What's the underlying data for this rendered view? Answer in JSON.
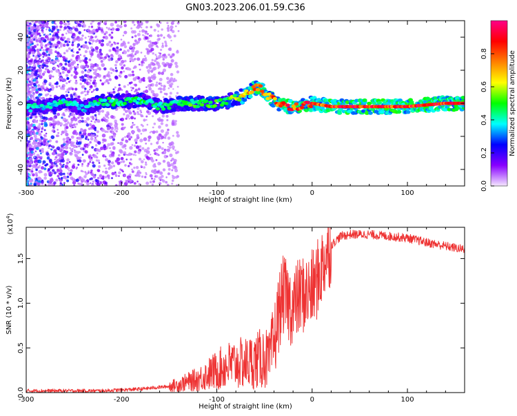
{
  "title": "GN03.2023.206.01.59.C36",
  "chart_data": [
    {
      "type": "heatmap",
      "xlabel": "Height of straight line (km)",
      "ylabel": "Frequency (Hz)",
      "xlim": [
        -300,
        160
      ],
      "ylim": [
        -50,
        50
      ],
      "x_ticks": [
        "-300",
        "-200",
        "-100",
        "0",
        "100"
      ],
      "x_tick_values": [
        -300,
        -200,
        -100,
        0,
        100
      ],
      "y_ticks": [
        "-40",
        "-20",
        "0",
        "20",
        "40"
      ],
      "y_tick_values": [
        -40,
        -20,
        0,
        20,
        40
      ],
      "colorbar": {
        "label": "Normalized spectral amplitude",
        "range": [
          0,
          1
        ],
        "ticks": [
          "0.0",
          "0.2",
          "0.4",
          "0.6",
          "0.8"
        ],
        "tick_values": [
          0,
          0.2,
          0.4,
          0.6,
          0.8
        ],
        "colors": [
          "#f5e8ff",
          "#8800ff",
          "#0000ff",
          "#00ffff",
          "#00ff00",
          "#ffff00",
          "#ff8000",
          "#ff0000",
          "#ff0088"
        ]
      },
      "ridge": {
        "x": [
          -300,
          -280,
          -260,
          -240,
          -220,
          -200,
          -180,
          -160,
          -140,
          -120,
          -100,
          -90,
          -80,
          -70,
          -60,
          -55,
          -50,
          -45,
          -40,
          -35,
          -30,
          -25,
          -20,
          -15,
          -10,
          -5,
          0,
          10,
          20,
          40,
          60,
          80,
          100,
          120,
          140,
          160
        ],
        "freq": [
          -3,
          -2,
          1,
          -3,
          1,
          1,
          2,
          -2,
          0,
          0,
          0,
          1,
          3,
          5,
          9,
          10,
          6,
          4,
          2,
          0,
          -1,
          -2,
          -3,
          -2,
          -1,
          -1,
          0,
          -1,
          -2,
          -2,
          -2,
          -2,
          -2,
          -1,
          0,
          0
        ],
        "amplitude": [
          0.45,
          0.4,
          0.45,
          0.4,
          0.5,
          0.5,
          0.5,
          0.45,
          0.5,
          0.55,
          0.55,
          0.55,
          0.6,
          0.7,
          0.9,
          0.9,
          0.9,
          0.85,
          0.85,
          0.85,
          0.9,
          0.9,
          0.9,
          0.9,
          0.9,
          0.9,
          0.9,
          0.9,
          0.95,
          0.95,
          0.95,
          0.95,
          0.95,
          0.95,
          0.95,
          0.95
        ]
      }
    },
    {
      "type": "line",
      "xlabel": "Height of straight line (km)",
      "ylabel": "SNR (10 * v/v)",
      "y_scale_label": "(x10",
      "y_scale_exp": "4",
      "y_scale_close": ")",
      "xlim": [
        -300,
        160
      ],
      "ylim": [
        0,
        1.85
      ],
      "x_ticks": [
        "-300",
        "-200",
        "-100",
        "0",
        "100"
      ],
      "x_tick_values": [
        -300,
        -200,
        -100,
        0,
        100
      ],
      "y_ticks": [
        "0.0",
        "0.5",
        "1.0",
        "1.5"
      ],
      "y_tick_values": [
        0,
        0.5,
        1.0,
        1.5
      ],
      "color": "#ee3333",
      "series": [
        {
          "x": [
            -300,
            -280,
            -260,
            -240,
            -220,
            -200,
            -180,
            -160,
            -150,
            -140,
            -130,
            -120,
            -110,
            -100,
            -90,
            -80,
            -70,
            -60,
            -50,
            -45,
            -40,
            -35,
            -30,
            -25,
            -20,
            -15,
            -10,
            -5,
            0,
            5,
            10,
            15,
            20,
            25,
            30,
            40,
            50,
            60,
            80,
            100,
            120,
            140,
            160
          ],
          "y": [
            0.02,
            0.02,
            0.02,
            0.02,
            0.02,
            0.03,
            0.04,
            0.06,
            0.07,
            0.09,
            0.12,
            0.15,
            0.2,
            0.25,
            0.3,
            0.32,
            0.33,
            0.35,
            0.4,
            0.35,
            0.55,
            0.9,
            1.1,
            1.0,
            0.95,
            1.05,
            1.1,
            1.1,
            1.15,
            1.25,
            1.4,
            1.55,
            1.65,
            1.7,
            1.75,
            1.77,
            1.77,
            1.77,
            1.75,
            1.73,
            1.68,
            1.64,
            1.6
          ]
        }
      ]
    }
  ]
}
